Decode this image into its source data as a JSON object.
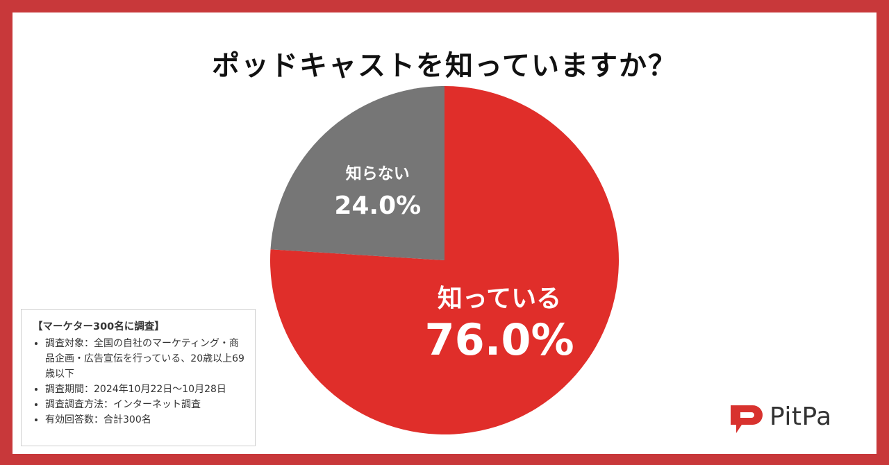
{
  "title": "ポッドキャストを知っていますか？",
  "colors": {
    "border": "#c8383a",
    "known": "#e02e2a",
    "unknown": "#767676"
  },
  "chart_data": {
    "type": "pie",
    "title": "ポッドキャストを知っていますか？",
    "slices": [
      {
        "label": "知っている",
        "value": 76.0,
        "display": "76.0%",
        "color": "#e02e2a"
      },
      {
        "label": "知らない",
        "value": 24.0,
        "display": "24.0%",
        "color": "#767676"
      }
    ]
  },
  "notes": {
    "title": "【マーケター300名に調査】",
    "items": [
      "調査対象：全国の自社のマーケティング・商品企画・広告宣伝を行っている、20歳以上69歳以下",
      "調査期間：2024年10月22日〜10月28日",
      "調査調査方法：インターネット調査",
      "有効回答数：合計300名"
    ]
  },
  "logo": {
    "text": "PitPa",
    "icon": "pitpa-logo-icon"
  }
}
